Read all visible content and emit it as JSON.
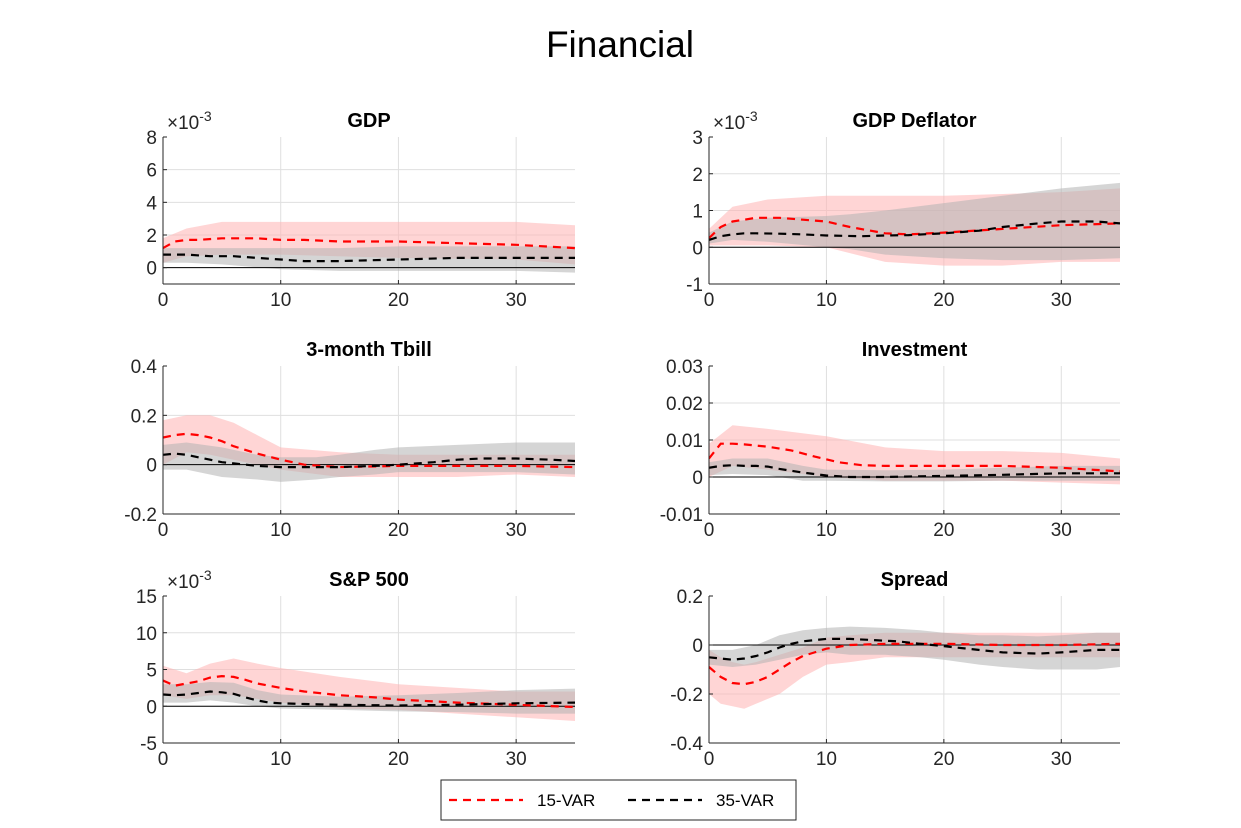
{
  "title": "Financial",
  "legend": {
    "items": [
      {
        "label": "15-VAR",
        "color": "#ff0000"
      },
      {
        "label": "35-VAR",
        "color": "#000000"
      }
    ],
    "placement": "bottom-center"
  },
  "colors": {
    "band_15": "#ffb3b3",
    "band_35": "#b3b3b3",
    "zero_line": "#000000",
    "grid": "#dfdfdf"
  },
  "chart_data": [
    {
      "type": "line",
      "title": "GDP",
      "exponent_label": "×10",
      "exponent": "-3",
      "xlim": [
        0,
        35
      ],
      "ylim": [
        -1,
        8
      ],
      "xticks": [
        "0",
        "10",
        "20",
        "30"
      ],
      "xtick_values": [
        0,
        10,
        20,
        30
      ],
      "yticks": [
        "0",
        "2",
        "4",
        "6",
        "8"
      ],
      "ytick_values": [
        0,
        2,
        4,
        6,
        8
      ],
      "grid": true,
      "zero_line": true,
      "series": [
        {
          "name": "15-VAR",
          "x": [
            0,
            1,
            2,
            3,
            5,
            8,
            10,
            12,
            15,
            20,
            25,
            30,
            35
          ],
          "y": [
            1.2,
            1.6,
            1.7,
            1.7,
            1.8,
            1.8,
            1.7,
            1.7,
            1.6,
            1.6,
            1.5,
            1.4,
            1.2
          ],
          "band_x": [
            0,
            2,
            5,
            10,
            20,
            30,
            35
          ],
          "band_lower": [
            0.3,
            0.7,
            0.8,
            0.8,
            0.6,
            0.5,
            0.2
          ],
          "band_upper": [
            1.8,
            2.4,
            2.8,
            2.8,
            2.8,
            2.8,
            2.6
          ]
        },
        {
          "name": "35-VAR",
          "x": [
            0,
            2,
            4,
            6,
            8,
            10,
            12,
            15,
            20,
            25,
            30,
            35
          ],
          "y": [
            0.8,
            0.8,
            0.7,
            0.7,
            0.6,
            0.5,
            0.4,
            0.4,
            0.5,
            0.6,
            0.6,
            0.6
          ],
          "band_x": [
            0,
            2,
            5,
            10,
            15,
            20,
            30,
            35
          ],
          "band_lower": [
            0.3,
            0.3,
            0.2,
            -0.1,
            -0.2,
            -0.2,
            -0.2,
            -0.3
          ],
          "band_upper": [
            1.2,
            1.2,
            1.2,
            1.2,
            1.2,
            1.3,
            1.3,
            1.3
          ]
        }
      ]
    },
    {
      "type": "line",
      "title": "GDP Deflator",
      "exponent_label": "×10",
      "exponent": "-3",
      "xlim": [
        0,
        35
      ],
      "ylim": [
        -1,
        3
      ],
      "xticks": [
        "0",
        "10",
        "20",
        "30"
      ],
      "xtick_values": [
        0,
        10,
        20,
        30
      ],
      "yticks": [
        "-1",
        "0",
        "1",
        "2",
        "3"
      ],
      "ytick_values": [
        -1,
        0,
        1,
        2,
        3
      ],
      "grid": true,
      "zero_line": true,
      "series": [
        {
          "name": "15-VAR",
          "x": [
            0,
            1,
            2,
            3,
            4,
            5,
            6,
            8,
            10,
            12,
            15,
            17,
            20,
            25,
            30,
            35
          ],
          "y": [
            0.25,
            0.55,
            0.7,
            0.75,
            0.8,
            0.8,
            0.8,
            0.75,
            0.7,
            0.55,
            0.38,
            0.35,
            0.4,
            0.5,
            0.6,
            0.65
          ],
          "band_x": [
            0,
            2,
            5,
            10,
            15,
            20,
            25,
            30,
            35
          ],
          "band_lower": [
            0.05,
            0.05,
            0.05,
            0.0,
            -0.4,
            -0.5,
            -0.5,
            -0.4,
            -0.4
          ],
          "band_upper": [
            0.5,
            1.1,
            1.3,
            1.4,
            1.4,
            1.4,
            1.45,
            1.5,
            1.6
          ]
        },
        {
          "name": "35-VAR",
          "x": [
            0,
            1,
            2,
            3,
            4,
            6,
            8,
            10,
            13,
            15,
            17,
            20,
            23,
            25,
            28,
            30,
            33,
            35
          ],
          "y": [
            0.2,
            0.3,
            0.35,
            0.38,
            0.38,
            0.37,
            0.35,
            0.32,
            0.3,
            0.32,
            0.33,
            0.38,
            0.45,
            0.55,
            0.65,
            0.7,
            0.7,
            0.65
          ],
          "band_x": [
            0,
            2,
            5,
            10,
            12,
            15,
            20,
            25,
            30,
            35
          ],
          "band_lower": [
            0.1,
            0.2,
            0.15,
            0.0,
            -0.05,
            -0.2,
            -0.3,
            -0.35,
            -0.35,
            -0.3
          ],
          "band_upper": [
            0.4,
            0.7,
            0.8,
            0.85,
            0.9,
            1.0,
            1.2,
            1.4,
            1.6,
            1.75
          ]
        }
      ]
    },
    {
      "type": "line",
      "title": "3-month Tbill",
      "xlim": [
        0,
        35
      ],
      "ylim": [
        -0.2,
        0.4
      ],
      "xticks": [
        "0",
        "10",
        "20",
        "30"
      ],
      "xtick_values": [
        0,
        10,
        20,
        30
      ],
      "yticks": [
        "-0.2",
        "0",
        "0.2",
        "0.4"
      ],
      "ytick_values": [
        -0.2,
        0,
        0.2,
        0.4
      ],
      "grid": true,
      "zero_line": true,
      "series": [
        {
          "name": "15-VAR",
          "x": [
            0,
            1,
            2,
            3,
            4,
            5,
            6,
            8,
            10,
            12,
            15,
            20,
            25,
            30,
            35
          ],
          "y": [
            0.11,
            0.12,
            0.125,
            0.12,
            0.11,
            0.095,
            0.075,
            0.045,
            0.02,
            0.0,
            -0.01,
            -0.005,
            -0.005,
            -0.005,
            -0.01
          ],
          "band_x": [
            0,
            2,
            4,
            6,
            8,
            10,
            15,
            20,
            25,
            30,
            35
          ],
          "band_lower": [
            0.0,
            0.05,
            0.04,
            0.02,
            0.0,
            -0.02,
            -0.05,
            -0.05,
            -0.05,
            -0.04,
            -0.05
          ],
          "band_upper": [
            0.18,
            0.2,
            0.2,
            0.17,
            0.12,
            0.07,
            0.05,
            0.04,
            0.04,
            0.04,
            0.04
          ]
        },
        {
          "name": "35-VAR",
          "x": [
            0,
            1,
            2,
            3,
            4,
            5,
            6,
            8,
            10,
            13,
            15,
            18,
            20,
            23,
            25,
            27,
            30,
            33,
            35
          ],
          "y": [
            0.04,
            0.045,
            0.04,
            0.03,
            0.02,
            0.01,
            0.005,
            -0.005,
            -0.01,
            -0.01,
            -0.01,
            -0.005,
            0.0,
            0.01,
            0.02,
            0.025,
            0.025,
            0.02,
            0.015
          ],
          "band_x": [
            0,
            2,
            5,
            8,
            10,
            13,
            15,
            18,
            20,
            25,
            30,
            35
          ],
          "band_lower": [
            -0.02,
            -0.02,
            -0.05,
            -0.06,
            -0.07,
            -0.06,
            -0.05,
            -0.04,
            -0.03,
            -0.03,
            -0.03,
            -0.04
          ],
          "band_upper": [
            0.08,
            0.09,
            0.07,
            0.04,
            0.03,
            0.03,
            0.04,
            0.06,
            0.07,
            0.08,
            0.09,
            0.09
          ]
        }
      ]
    },
    {
      "type": "line",
      "title": "Investment",
      "xlim": [
        0,
        35
      ],
      "ylim": [
        -0.01,
        0.03
      ],
      "xticks": [
        "0",
        "10",
        "20",
        "30"
      ],
      "xtick_values": [
        0,
        10,
        20,
        30
      ],
      "yticks": [
        "-0.01",
        "0",
        "0.01",
        "0.02",
        "0.03"
      ],
      "ytick_values": [
        -0.01,
        0,
        0.01,
        0.02,
        0.03
      ],
      "grid": true,
      "zero_line": true,
      "series": [
        {
          "name": "15-VAR",
          "x": [
            0,
            1,
            2,
            3,
            5,
            7,
            9,
            11,
            13,
            15,
            20,
            25,
            30,
            35
          ],
          "y": [
            0.005,
            0.009,
            0.009,
            0.0088,
            0.0082,
            0.0072,
            0.0055,
            0.004,
            0.0032,
            0.003,
            0.003,
            0.003,
            0.0025,
            0.0015
          ],
          "band_x": [
            0,
            2,
            5,
            10,
            15,
            20,
            25,
            30,
            35
          ],
          "band_lower": [
            0.0,
            0.003,
            0.002,
            0.0,
            -0.001,
            -0.001,
            -0.001,
            -0.0015,
            -0.002
          ],
          "band_upper": [
            0.009,
            0.014,
            0.013,
            0.011,
            0.008,
            0.007,
            0.007,
            0.0065,
            0.005
          ]
        },
        {
          "name": "35-VAR",
          "x": [
            0,
            1,
            2,
            3,
            4,
            5,
            6,
            8,
            10,
            12,
            15,
            20,
            25,
            30,
            35
          ],
          "y": [
            0.0025,
            0.003,
            0.0032,
            0.003,
            0.003,
            0.0028,
            0.0022,
            0.0012,
            0.0004,
            0.0,
            0.0,
            0.0003,
            0.0006,
            0.001,
            0.001
          ],
          "band_x": [
            0,
            2,
            5,
            8,
            10,
            15,
            20,
            25,
            30,
            35
          ],
          "band_lower": [
            0.0005,
            0.0008,
            0.0005,
            -0.001,
            -0.001,
            -0.0012,
            -0.0012,
            -0.001,
            -0.001,
            -0.001
          ],
          "band_upper": [
            0.004,
            0.005,
            0.005,
            0.003,
            0.002,
            0.0018,
            0.002,
            0.0025,
            0.003,
            0.003
          ]
        }
      ]
    },
    {
      "type": "line",
      "title": "S&P 500",
      "exponent_label": "×10",
      "exponent": "-3",
      "xlim": [
        0,
        35
      ],
      "ylim": [
        -5,
        15
      ],
      "xticks": [
        "0",
        "10",
        "20",
        "30"
      ],
      "xtick_values": [
        0,
        10,
        20,
        30
      ],
      "yticks": [
        "-5",
        "0",
        "5",
        "10",
        "15"
      ],
      "ytick_values": [
        -5,
        0,
        5,
        10,
        15
      ],
      "grid": true,
      "zero_line": true,
      "series": [
        {
          "name": "15-VAR",
          "x": [
            0,
            1,
            2,
            3,
            4,
            5,
            6,
            7,
            8,
            10,
            12,
            15,
            18,
            20,
            25,
            30,
            35
          ],
          "y": [
            3.5,
            2.8,
            3.1,
            3.4,
            3.9,
            4.1,
            4.0,
            3.6,
            3.1,
            2.5,
            2.0,
            1.5,
            1.2,
            0.9,
            0.5,
            0.2,
            -0.1
          ],
          "band_x": [
            0,
            2,
            4,
            6,
            8,
            10,
            15,
            20,
            25,
            30,
            35
          ],
          "band_lower": [
            1.5,
            1.0,
            1.5,
            1.5,
            1.0,
            0.5,
            -0.3,
            -0.5,
            -1.0,
            -1.5,
            -2.0
          ],
          "band_upper": [
            5.5,
            4.5,
            5.8,
            6.5,
            5.8,
            5.2,
            4.0,
            3.0,
            2.5,
            2.0,
            2.0
          ]
        },
        {
          "name": "35-VAR",
          "x": [
            0,
            1,
            2,
            3,
            4,
            5,
            6,
            7,
            8,
            9,
            10,
            12,
            15,
            20,
            25,
            30,
            35
          ],
          "y": [
            1.6,
            1.5,
            1.6,
            1.8,
            2.0,
            1.9,
            1.7,
            1.2,
            0.8,
            0.5,
            0.4,
            0.3,
            0.2,
            0.1,
            0.2,
            0.4,
            0.5
          ],
          "band_x": [
            0,
            2,
            4,
            6,
            8,
            10,
            15,
            20,
            25,
            30,
            35
          ],
          "band_lower": [
            0.5,
            0.5,
            0.8,
            0.5,
            0.0,
            -0.3,
            -0.5,
            -0.7,
            -0.8,
            -1.0,
            -1.0
          ],
          "band_upper": [
            3.0,
            3.0,
            3.3,
            3.2,
            2.2,
            1.6,
            1.3,
            1.5,
            1.8,
            2.2,
            2.4
          ]
        }
      ]
    },
    {
      "type": "line",
      "title": "Spread",
      "xlim": [
        0,
        35
      ],
      "ylim": [
        -0.4,
        0.2
      ],
      "xticks": [
        "0",
        "10",
        "20",
        "30"
      ],
      "xtick_values": [
        0,
        10,
        20,
        30
      ],
      "yticks": [
        "-0.4",
        "-0.2",
        "0",
        "0.2"
      ],
      "ytick_values": [
        -0.4,
        -0.2,
        0,
        0.2
      ],
      "grid": true,
      "zero_line": true,
      "series": [
        {
          "name": "15-VAR",
          "x": [
            0,
            1,
            2,
            3,
            4,
            5,
            6,
            7,
            8,
            10,
            12,
            15,
            20,
            25,
            30,
            35
          ],
          "y": [
            -0.09,
            -0.13,
            -0.155,
            -0.16,
            -0.15,
            -0.13,
            -0.1,
            -0.07,
            -0.045,
            -0.015,
            0.0,
            0.005,
            0.005,
            0.0,
            0.0,
            0.005
          ],
          "band_x": [
            0,
            1,
            2,
            3,
            4,
            6,
            8,
            10,
            12,
            15,
            20,
            25,
            30,
            35
          ],
          "band_lower": [
            -0.2,
            -0.24,
            -0.25,
            -0.26,
            -0.24,
            -0.2,
            -0.13,
            -0.08,
            -0.07,
            -0.05,
            -0.05,
            -0.05,
            -0.05,
            -0.05
          ],
          "band_upper": [
            -0.02,
            -0.05,
            -0.07,
            -0.08,
            -0.07,
            -0.04,
            -0.01,
            0.03,
            0.04,
            0.05,
            0.05,
            0.05,
            0.05,
            0.05
          ]
        },
        {
          "name": "35-VAR",
          "x": [
            0,
            1,
            2,
            3,
            4,
            5,
            6,
            7,
            8,
            9,
            10,
            11,
            12,
            14,
            16,
            18,
            20,
            22,
            25,
            28,
            30,
            33,
            35
          ],
          "y": [
            -0.05,
            -0.055,
            -0.06,
            -0.055,
            -0.045,
            -0.03,
            -0.01,
            0.005,
            0.015,
            0.02,
            0.025,
            0.025,
            0.025,
            0.02,
            0.015,
            0.005,
            -0.005,
            -0.015,
            -0.03,
            -0.035,
            -0.03,
            -0.02,
            -0.02
          ],
          "band_x": [
            0,
            2,
            4,
            6,
            8,
            10,
            12,
            15,
            18,
            20,
            23,
            25,
            28,
            30,
            33,
            35
          ],
          "band_lower": [
            -0.08,
            -0.09,
            -0.08,
            -0.06,
            -0.04,
            -0.03,
            -0.04,
            -0.04,
            -0.05,
            -0.06,
            -0.08,
            -0.09,
            -0.1,
            -0.1,
            -0.1,
            -0.09
          ],
          "band_upper": [
            -0.02,
            -0.02,
            0.0,
            0.04,
            0.06,
            0.07,
            0.075,
            0.07,
            0.06,
            0.05,
            0.04,
            0.04,
            0.035,
            0.04,
            0.05,
            0.05
          ]
        }
      ]
    }
  ]
}
